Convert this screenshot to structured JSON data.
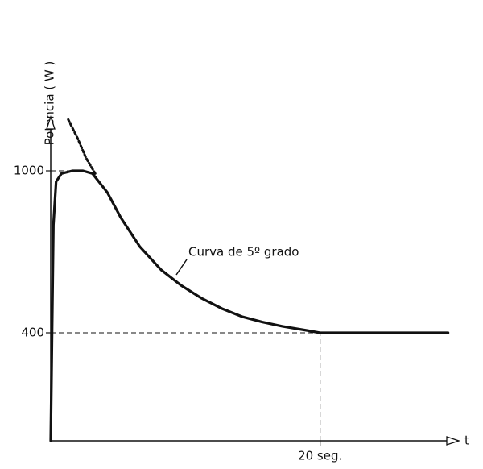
{
  "chart_data": {
    "type": "line",
    "y_label": "Potencia ( W )",
    "x_label": "t",
    "annotation": "Curva de 5º grado",
    "xlim": [
      0,
      30
    ],
    "ylim": [
      0,
      1200
    ],
    "xticks": [
      {
        "value": 20,
        "label": "20 seg."
      }
    ],
    "yticks": [
      400,
      1000
    ],
    "guides": true,
    "series": [
      {
        "color": "#111111",
        "dashed": false,
        "x": [
          0,
          0.2,
          0.4,
          0.8,
          1.6,
          2.4,
          3.1,
          4.2,
          5.2,
          6.6,
          8.2,
          9.7,
          11.2,
          12.7,
          14.2,
          15.7,
          17.2,
          19,
          20,
          25,
          29.5
        ],
        "values": [
          0,
          800,
          960,
          990,
          1000,
          1000,
          990,
          920,
          827,
          720,
          633,
          575,
          528,
          490,
          460,
          440,
          424,
          409,
          400,
          400,
          400
        ]
      },
      {
        "color": "#111111",
        "dashed": true,
        "x": [
          1.3,
          2,
          2.6,
          3.3
        ],
        "values": [
          1190,
          1120,
          1050,
          990
        ]
      }
    ]
  }
}
